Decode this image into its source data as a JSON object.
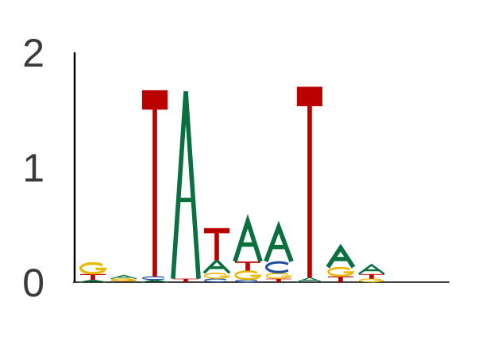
{
  "chart_data": {
    "type": "sequence-logo",
    "ylim": [
      0,
      2
    ],
    "yticks": [
      {
        "value": 0,
        "label": "0"
      },
      {
        "value": 1,
        "label": "1"
      },
      {
        "value": 2,
        "label": "2"
      }
    ],
    "colors": {
      "A": "#0a7040",
      "C": "#1f4fa0",
      "G": "#e8b800",
      "T": "#bb0000"
    },
    "positions": [
      [
        {
          "base": "A",
          "height": 0.02
        },
        {
          "base": "T",
          "height": 0.05
        },
        {
          "base": "G",
          "height": 0.1
        }
      ],
      [
        {
          "base": "T",
          "height": 0.01
        },
        {
          "base": "G",
          "height": 0.02
        },
        {
          "base": "A",
          "height": 0.03
        }
      ],
      [
        {
          "base": "A",
          "height": 0.02
        },
        {
          "base": "C",
          "height": 0.03
        },
        {
          "base": "T",
          "height": 1.62
        }
      ],
      [
        {
          "base": "T",
          "height": 0.03
        },
        {
          "base": "A",
          "height": 1.63
        }
      ],
      [
        {
          "base": "C",
          "height": 0.03
        },
        {
          "base": "G",
          "height": 0.05
        },
        {
          "base": "A",
          "height": 0.11
        },
        {
          "base": "T",
          "height": 0.28
        }
      ],
      [
        {
          "base": "C",
          "height": 0.02
        },
        {
          "base": "G",
          "height": 0.08
        },
        {
          "base": "T",
          "height": 0.08
        },
        {
          "base": "A",
          "height": 0.35
        }
      ],
      [
        {
          "base": "T",
          "height": 0.03
        },
        {
          "base": "G",
          "height": 0.05
        },
        {
          "base": "C",
          "height": 0.1
        },
        {
          "base": "A",
          "height": 0.3
        }
      ],
      [
        {
          "base": "A",
          "height": 0.04
        },
        {
          "base": "T",
          "height": 1.66
        }
      ],
      [
        {
          "base": "T",
          "height": 0.05
        },
        {
          "base": "G",
          "height": 0.08
        },
        {
          "base": "A",
          "height": 0.17
        }
      ],
      [
        {
          "base": "G",
          "height": 0.03
        },
        {
          "base": "T",
          "height": 0.04
        },
        {
          "base": "A",
          "height": 0.08
        }
      ]
    ]
  }
}
